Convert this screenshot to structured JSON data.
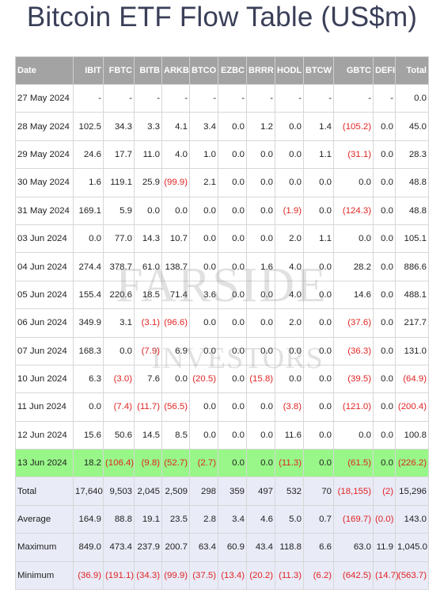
{
  "title": "Bitcoin ETF Flow Table (US$m)",
  "watermark": {
    "line1": "FARSIDE",
    "line2": "INVESTORS"
  },
  "columns": [
    "Date",
    "IBIT",
    "FBTC",
    "BITB",
    "ARKB",
    "BTCO",
    "EZBC",
    "BRRR",
    "HODL",
    "BTCW",
    "GBTC",
    "DEFI",
    "Total"
  ],
  "rows": [
    [
      "27 May 2024",
      "-",
      "-",
      "-",
      "-",
      "-",
      "-",
      "-",
      "-",
      "-",
      "-",
      "-",
      "0.0"
    ],
    [
      "28 May 2024",
      "102.5",
      "34.3",
      "3.3",
      "4.1",
      "3.4",
      "0.0",
      "1.2",
      "0.0",
      "1.4",
      "(105.2)",
      "0.0",
      "45.0"
    ],
    [
      "29 May 2024",
      "24.6",
      "17.7",
      "11.0",
      "4.0",
      "1.0",
      "0.0",
      "0.0",
      "0.0",
      "1.1",
      "(31.1)",
      "0.0",
      "28.3"
    ],
    [
      "30 May 2024",
      "1.6",
      "119.1",
      "25.9",
      "(99.9)",
      "2.1",
      "0.0",
      "0.0",
      "0.0",
      "0.0",
      "0.0",
      "0.0",
      "48.8"
    ],
    [
      "31 May 2024",
      "169.1",
      "5.9",
      "0.0",
      "0.0",
      "0.0",
      "0.0",
      "0.0",
      "(1.9)",
      "0.0",
      "(124.3)",
      "0.0",
      "48.8"
    ],
    [
      "03 Jun 2024",
      "0.0",
      "77.0",
      "14.3",
      "10.7",
      "0.0",
      "0.0",
      "0.0",
      "2.0",
      "1.1",
      "0.0",
      "0.0",
      "105.1"
    ],
    [
      "04 Jun 2024",
      "274.4",
      "378.7",
      "61.0",
      "138.7",
      "0.0",
      "0.0",
      "1.6",
      "4.0",
      "0.0",
      "28.2",
      "0.0",
      "886.6"
    ],
    [
      "05 Jun 2024",
      "155.4",
      "220.6",
      "18.5",
      "71.4",
      "3.6",
      "0.0",
      "0.0",
      "4.0",
      "0.0",
      "14.6",
      "0.0",
      "488.1"
    ],
    [
      "06 Jun 2024",
      "349.9",
      "3.1",
      "(3.1)",
      "(96.6)",
      "0.0",
      "0.0",
      "0.0",
      "2.0",
      "0.0",
      "(37.6)",
      "0.0",
      "217.7"
    ],
    [
      "07 Jun 2024",
      "168.3",
      "0.0",
      "(7.9)",
      "6.9",
      "0.0",
      "0.0",
      "0.0",
      "0.0",
      "0.0",
      "(36.3)",
      "0.0",
      "131.0"
    ],
    [
      "10 Jun 2024",
      "6.3",
      "(3.0)",
      "7.6",
      "0.0",
      "(20.5)",
      "0.0",
      "(15.8)",
      "0.0",
      "0.0",
      "(39.5)",
      "0.0",
      "(64.9)"
    ],
    [
      "11 Jun 2024",
      "0.0",
      "(7.4)",
      "(11.7)",
      "(56.5)",
      "0.0",
      "0.0",
      "0.0",
      "(3.8)",
      "0.0",
      "(121.0)",
      "0.0",
      "(200.4)"
    ],
    [
      "12 Jun 2024",
      "15.6",
      "50.6",
      "14.5",
      "8.5",
      "0.0",
      "0.0",
      "0.0",
      "11.6",
      "0.0",
      "0.0",
      "0.0",
      "100.8"
    ],
    [
      "13 Jun 2024",
      "18.2",
      "(106.4)",
      "(9.8)",
      "(52.7)",
      "(2.7)",
      "0.0",
      "0.0",
      "(11.3)",
      "0.0",
      "(61.5)",
      "0.0",
      "(226.2)"
    ]
  ],
  "highlight_row_index": 13,
  "summary": [
    [
      "Total",
      "17,640",
      "9,503",
      "2,045",
      "2,509",
      "298",
      "359",
      "497",
      "532",
      "70",
      "(18,155)",
      "(2)",
      "15,296"
    ],
    [
      "Average",
      "164.9",
      "88.8",
      "19.1",
      "23.5",
      "2.8",
      "3.4",
      "4.6",
      "5.0",
      "0.7",
      "(169.7)",
      "(0.0)",
      "143.0"
    ],
    [
      "Maximum",
      "849.0",
      "473.4",
      "237.9",
      "200.7",
      "63.4",
      "60.9",
      "43.4",
      "118.8",
      "6.6",
      "63.0",
      "11.9",
      "1,045.0"
    ],
    [
      "Minimum",
      "(36.9)",
      "(191.1)",
      "(34.3)",
      "(99.9)",
      "(37.5)",
      "(13.4)",
      "(20.2)",
      "(11.3)",
      "(6.2)",
      "(642.5)",
      "(14.7)",
      "(563.7)"
    ]
  ],
  "colors": {
    "header_bg": "#a3a3a3",
    "negative": "#e02424",
    "highlight": "#98f788",
    "summary_bg": "#e9ebf7",
    "title": "#3a3f58"
  }
}
